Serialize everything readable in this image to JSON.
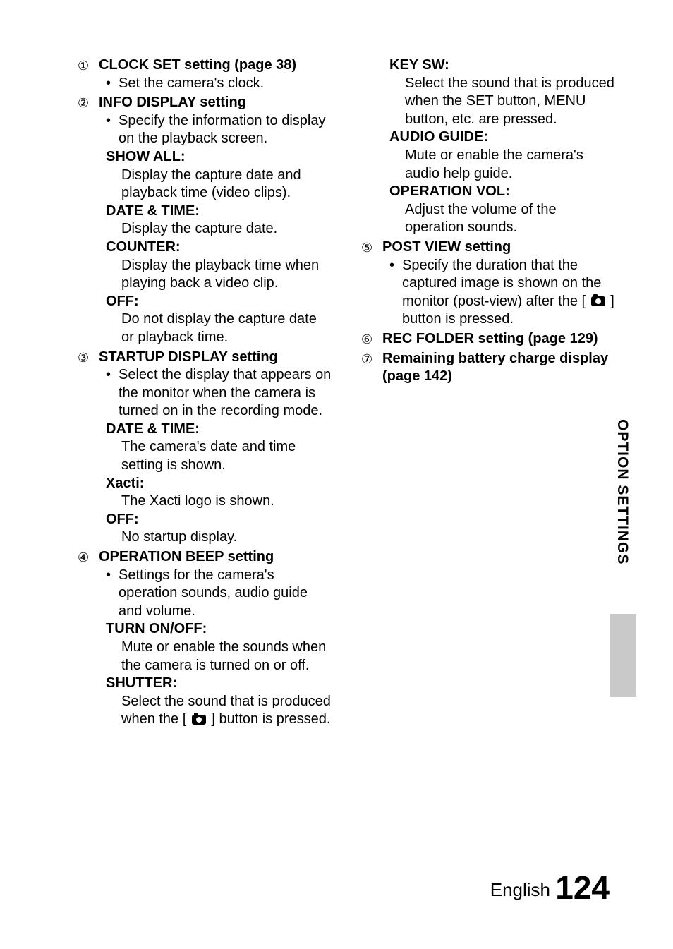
{
  "sidebar_label": "OPTION SETTINGS",
  "footer_lang": "English",
  "footer_page": "124",
  "left": {
    "i1": {
      "num": "①",
      "title": "CLOCK SET setting (page 38)",
      "b1": "Set the camera's clock."
    },
    "i2": {
      "num": "②",
      "title": "INFO DISPLAY setting",
      "b1": "Specify the information to display on the playback screen.",
      "s1h": "SHOW ALL:",
      "s1t": "Display the capture date and playback time (video clips).",
      "s2h": "DATE & TIME:",
      "s2t": "Display the capture date.",
      "s3h": "COUNTER:",
      "s3t": "Display the playback time when playing back a video clip.",
      "s4h": "OFF:",
      "s4t": "Do not display the capture date or playback time."
    },
    "i3": {
      "num": "③",
      "title": "STARTUP DISPLAY setting",
      "b1": "Select the display that appears on the monitor when the camera is turned on in the recording mode.",
      "s1h": "DATE & TIME:",
      "s1t": "The camera's date and time setting is shown.",
      "s2h": "Xacti:",
      "s2t": "The Xacti logo is shown.",
      "s3h": "OFF:",
      "s3t": "No startup display."
    },
    "i4": {
      "num": "④",
      "title": "OPERATION BEEP setting",
      "b1": "Settings for the camera's operation sounds, audio guide and volume.",
      "s1h": "TURN ON/OFF:",
      "s1t": "Mute or enable the sounds when the camera is turned on or off.",
      "s2h": "SHUTTER:",
      "s2t_a": "Select the sound that is produced when the [",
      "s2t_b": "] button is pressed."
    }
  },
  "right": {
    "c4": {
      "s3h": "KEY SW:",
      "s3t": "Select the sound that is produced when the SET button, MENU button, etc. are pressed.",
      "s4h": "AUDIO GUIDE:",
      "s4t": "Mute or enable the camera's audio help guide.",
      "s5h": "OPERATION VOL:",
      "s5t": "Adjust the volume of the operation sounds."
    },
    "i5": {
      "num": "⑤",
      "title": "POST VIEW setting",
      "b1_a": "Specify the duration that the captured image is shown on the monitor (post-view) after the [",
      "b1_b": "] button is pressed."
    },
    "i6": {
      "num": "⑥",
      "title": "REC FOLDER setting (page 129)"
    },
    "i7": {
      "num": "⑦",
      "title": "Remaining battery charge display (page 142)"
    }
  }
}
